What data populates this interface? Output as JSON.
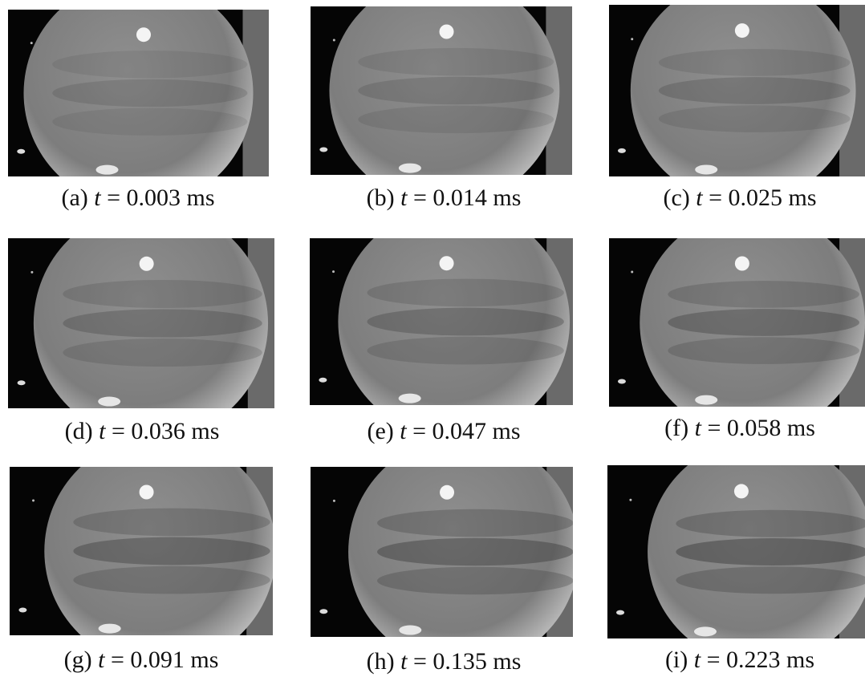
{
  "panels": [
    {
      "label": "(a)",
      "variable": "t",
      "value": "= 0.003 ms"
    },
    {
      "label": "(b)",
      "variable": "t",
      "value": "= 0.014 ms"
    },
    {
      "label": "(c)",
      "variable": "t",
      "value": "= 0.025 ms"
    },
    {
      "label": "(d)",
      "variable": "t",
      "value": "= 0.036 ms"
    },
    {
      "label": "(e)",
      "variable": "t",
      "value": "= 0.047 ms"
    },
    {
      "label": "(f)",
      "variable": "t",
      "value": "= 0.058 ms"
    },
    {
      "label": "(g)",
      "variable": "t",
      "value": "= 0.091 ms"
    },
    {
      "label": "(h)",
      "variable": "t",
      "value": "= 0.135 ms"
    },
    {
      "label": "(i)",
      "variable": "t",
      "value": "= 0.223 ms"
    }
  ]
}
